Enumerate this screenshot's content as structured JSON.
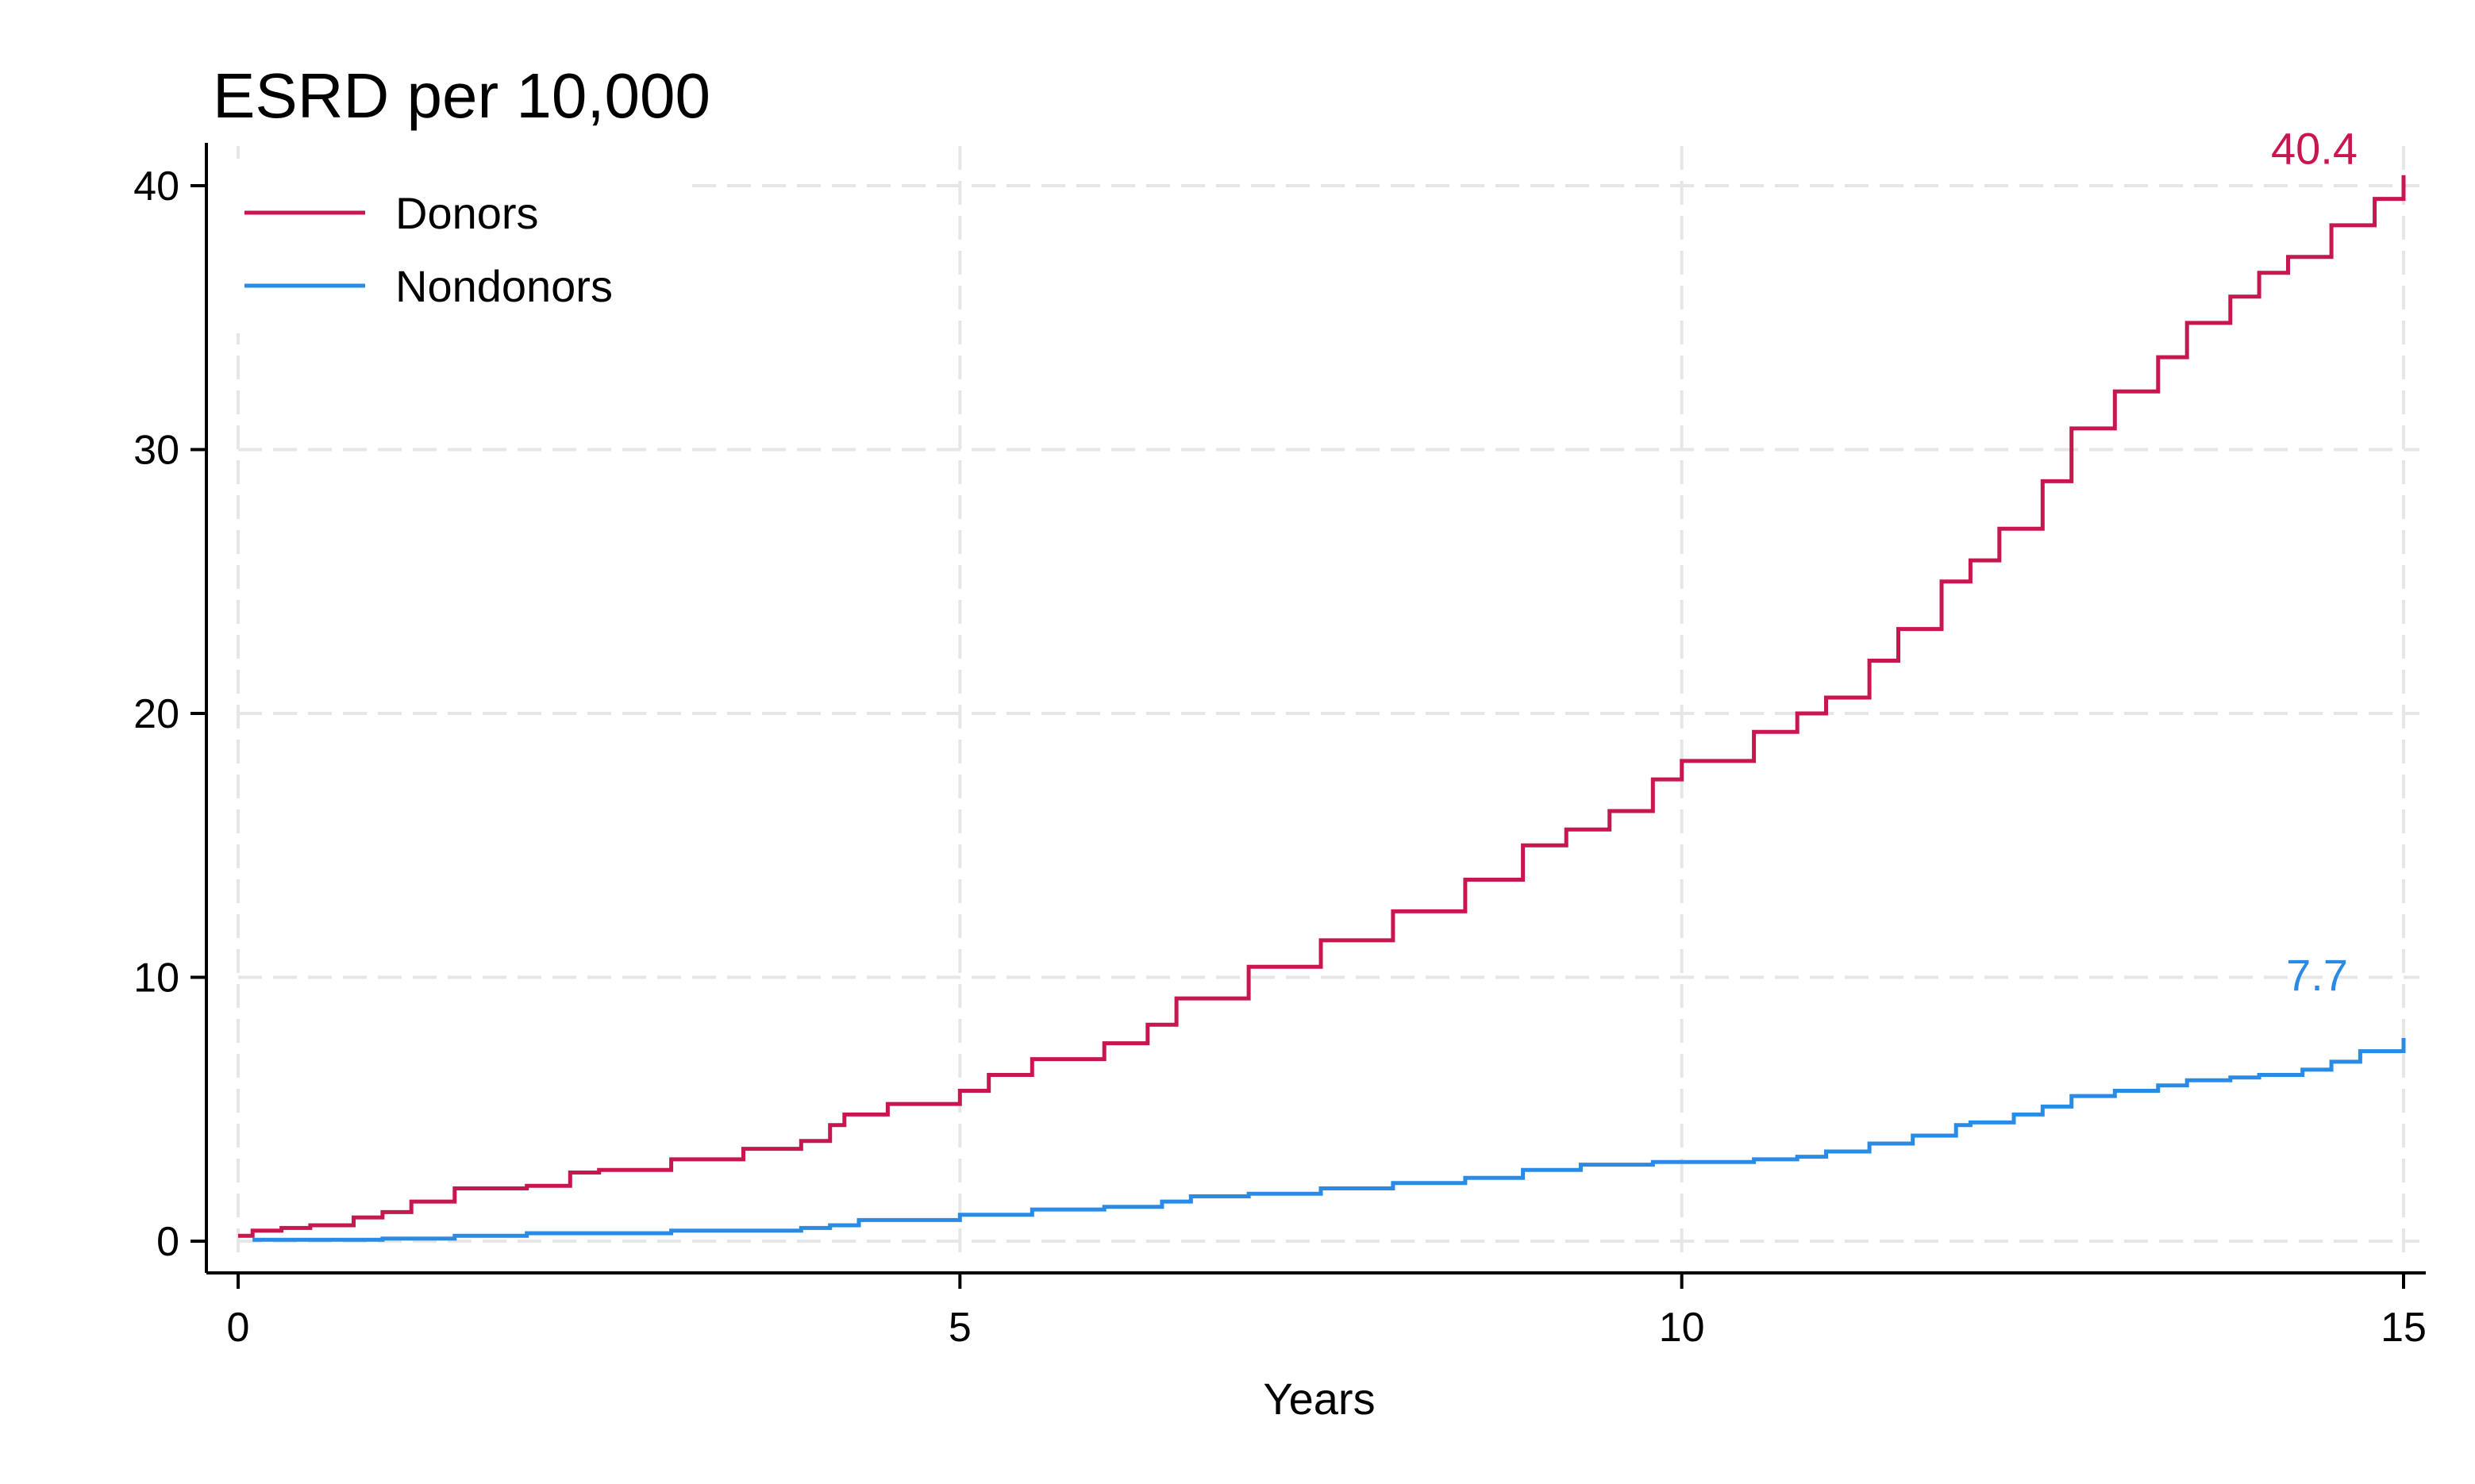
{
  "chart_data": {
    "type": "line",
    "title": "ESRD per 10,000",
    "xlabel": "Years",
    "ylabel": "",
    "xlim": [
      0,
      15
    ],
    "ylim": [
      0,
      40
    ],
    "xticks": [
      0,
      5,
      10,
      15
    ],
    "yticks": [
      0,
      10,
      20,
      30,
      40
    ],
    "grid": true,
    "legend_position": "top-left",
    "step": true,
    "series": [
      {
        "name": "Donors",
        "color": "#c8174f",
        "end_label": "40.4",
        "x": [
          0,
          0.1,
          0.3,
          0.5,
          0.8,
          1.0,
          1.2,
          1.5,
          2.0,
          2.3,
          2.5,
          3.0,
          3.5,
          3.9,
          4.1,
          4.2,
          4.5,
          5.0,
          5.2,
          5.5,
          6.0,
          6.3,
          6.5,
          7.0,
          7.5,
          8.0,
          8.5,
          8.9,
          9.2,
          9.5,
          9.8,
          10.0,
          10.5,
          10.8,
          11.0,
          11.3,
          11.5,
          11.8,
          12.0,
          12.2,
          12.5,
          12.7,
          13.0,
          13.3,
          13.5,
          13.8,
          14.0,
          14.2,
          14.5,
          14.8,
          15.0
        ],
        "y": [
          0.2,
          0.4,
          0.5,
          0.6,
          0.9,
          1.1,
          1.5,
          2.0,
          2.1,
          2.6,
          2.7,
          3.1,
          3.5,
          3.8,
          4.4,
          4.8,
          5.2,
          5.7,
          6.3,
          6.9,
          7.5,
          8.2,
          9.2,
          10.4,
          11.4,
          12.5,
          13.7,
          15.0,
          15.6,
          16.3,
          17.5,
          18.2,
          19.3,
          20.0,
          20.6,
          22.0,
          23.2,
          25.0,
          25.8,
          27.0,
          28.8,
          30.8,
          32.2,
          33.5,
          34.8,
          35.8,
          36.7,
          37.3,
          38.5,
          39.5,
          40.4
        ]
      },
      {
        "name": "Nondonors",
        "color": "#2a8be6",
        "end_label": "7.7",
        "x": [
          0.1,
          0.5,
          1.0,
          1.5,
          2.0,
          3.0,
          3.9,
          4.1,
          4.3,
          5.0,
          5.5,
          6.0,
          6.4,
          6.6,
          7.0,
          7.5,
          8.0,
          8.5,
          8.9,
          9.3,
          9.8,
          10.0,
          10.5,
          10.8,
          11.0,
          11.3,
          11.6,
          11.9,
          12.0,
          12.3,
          12.5,
          12.7,
          13.0,
          13.3,
          13.5,
          13.8,
          14.0,
          14.3,
          14.5,
          14.7,
          15.0
        ],
        "y": [
          0.05,
          0.05,
          0.1,
          0.2,
          0.3,
          0.4,
          0.5,
          0.6,
          0.8,
          1.0,
          1.2,
          1.3,
          1.5,
          1.7,
          1.8,
          2.0,
          2.2,
          2.4,
          2.7,
          2.9,
          3.0,
          3.0,
          3.1,
          3.2,
          3.4,
          3.7,
          4.0,
          4.4,
          4.5,
          4.8,
          5.1,
          5.5,
          5.7,
          5.9,
          6.1,
          6.2,
          6.3,
          6.5,
          6.8,
          7.2,
          7.7
        ]
      }
    ]
  }
}
